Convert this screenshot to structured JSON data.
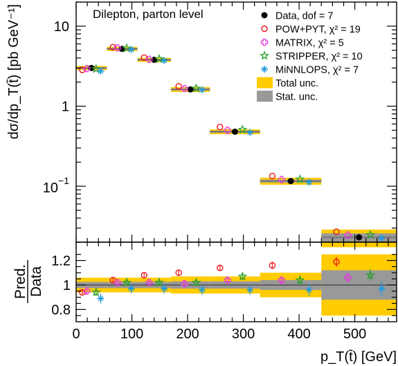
{
  "chart_data": [
    {
      "type": "scatter",
      "annotation": "Dilepton, parton level",
      "ylabel": "dσ/dp_T(t̄) [pb GeV⁻¹]",
      "xlabel": "",
      "xlim": [
        0,
        575
      ],
      "ylim": [
        0.02,
        20
      ],
      "y_scale": "log",
      "y_tick_labels": [
        "1",
        "10",
        "10",
        "−1"
      ],
      "x_tick_labels": [],
      "bins": [
        [
          0,
          55
        ],
        [
          55,
          110
        ],
        [
          110,
          170
        ],
        [
          170,
          240
        ],
        [
          240,
          330
        ],
        [
          330,
          440
        ],
        [
          440,
          575
        ]
      ],
      "series": [
        {
          "name": "Data, dof = 7",
          "color": "#000000",
          "marker": "dot",
          "values": [
            3.0,
            5.2,
            3.8,
            1.62,
            0.48,
            0.116,
            0.023
          ]
        },
        {
          "name": "POW+PYT, χ² = 19",
          "color": "#e8141b",
          "marker": "open-circle",
          "values": [
            2.85,
            5.45,
            4.05,
            1.77,
            0.55,
            0.134,
            0.027
          ]
        },
        {
          "name": "MATRIX, χ² = 5",
          "color": "#e63cdc",
          "marker": "open-cross",
          "values": [
            2.95,
            5.35,
            3.85,
            1.66,
            0.5,
            0.121,
            0.0245
          ]
        },
        {
          "name": "STRIPPER, χ² = 10",
          "color": "#2ca02c",
          "marker": "star",
          "values": [
            2.92,
            5.3,
            3.9,
            1.67,
            0.51,
            0.122,
            0.0247
          ]
        },
        {
          "name": "MiNNLOPS, χ² = 7",
          "color": "#1f9be0",
          "marker": "asterisk",
          "values": [
            2.75,
            5.1,
            3.72,
            1.6,
            0.47,
            0.112,
            0.0225
          ]
        }
      ],
      "bands": [
        {
          "name": "Total unc.",
          "color": "#ffcc00",
          "rel": [
            0.06,
            0.06,
            0.06,
            0.07,
            0.07,
            0.1,
            0.25
          ]
        },
        {
          "name": "Stat. unc.",
          "color": "#999999",
          "rel": [
            0.025,
            0.025,
            0.025,
            0.03,
            0.03,
            0.04,
            0.12
          ]
        }
      ]
    },
    {
      "type": "scatter",
      "ylabel_numerator": "Pred.",
      "ylabel_denominator": "Data",
      "xlabel": "p_T(t̄) [GeV]",
      "xlim": [
        0,
        575
      ],
      "ylim": [
        0.7,
        1.35
      ],
      "x_tick_labels": [
        "0",
        "100",
        "200",
        "300",
        "400",
        "500"
      ],
      "y_tick_labels": [
        "0.8",
        "1",
        "1.2"
      ],
      "series": [
        {
          "name": "POW+PYT, χ² = 19",
          "values": [
            0.94,
            1.04,
            1.08,
            1.1,
            1.14,
            1.16,
            1.19
          ],
          "err": [
            0.02,
            0.02,
            0.02,
            0.02,
            0.02,
            0.03,
            0.04
          ]
        },
        {
          "name": "MATRIX, χ² = 5",
          "values": [
            0.95,
            1.02,
            1.02,
            1.01,
            1.04,
            1.04,
            1.06
          ],
          "err": [
            0.02,
            0.02,
            0.02,
            0.02,
            0.02,
            0.03,
            0.04
          ]
        },
        {
          "name": "STRIPPER, χ² = 10",
          "values": [
            0.94,
            1.02,
            1.02,
            1.02,
            1.07,
            1.04,
            1.08
          ],
          "err": [
            0.03,
            0.03,
            0.03,
            0.03,
            0.03,
            0.04,
            0.05
          ]
        },
        {
          "name": "MiNNLOPS, χ² = 7",
          "values": [
            0.89,
            0.97,
            0.97,
            0.96,
            0.96,
            0.96,
            0.97
          ],
          "err": [
            0.04,
            0.04,
            0.04,
            0.04,
            0.04,
            0.05,
            0.06
          ]
        }
      ]
    }
  ]
}
